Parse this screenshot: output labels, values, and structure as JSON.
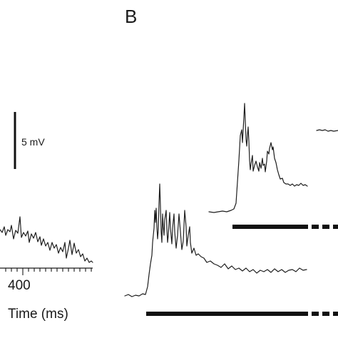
{
  "figure": {
    "panel_label": "B",
    "scale_bar_label": "5 mV",
    "tick_label_400": "400",
    "axis_label": "Time (ms)",
    "colors": {
      "trace": "#1e1e1e",
      "bar": "#111111",
      "background": "#ffffff"
    }
  }
}
